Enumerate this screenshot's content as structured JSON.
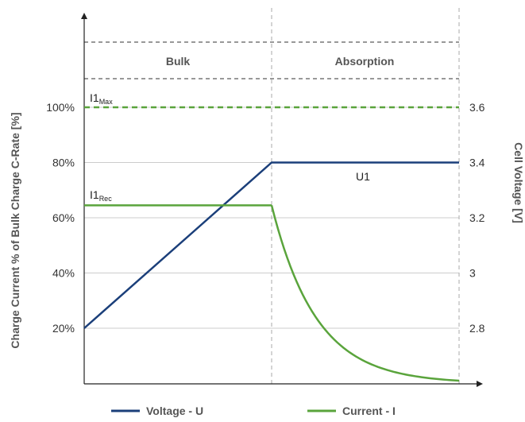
{
  "chart_data": {
    "type": "line",
    "title": "",
    "ylabel_left": "Charge Current % of Bulk Charge C-Rate [%]",
    "ylabel_right": "Cell Voltage [V]",
    "xlabel": "",
    "left_axis": {
      "ticks": [
        "20%",
        "40%",
        "60%",
        "80%",
        "100%"
      ],
      "values": [
        20,
        40,
        60,
        80,
        100
      ]
    },
    "right_axis": {
      "ticks": [
        "2.8",
        "3",
        "3.2",
        "3.4",
        "3.6"
      ],
      "values": [
        2.8,
        3.0,
        3.2,
        3.4,
        3.6
      ]
    },
    "phases": [
      "Bulk",
      "Absorption"
    ],
    "annotations": {
      "i1max": {
        "main": "I1",
        "sub": "Max"
      },
      "i1rec": {
        "main": "I1",
        "sub": "Rec"
      },
      "u1": "U1"
    },
    "series": [
      {
        "name": "Voltage - U",
        "axis": "right",
        "color": "#1b3f7a",
        "x": [
          0,
          0.5,
          1.0
        ],
        "y": [
          2.8,
          3.4,
          3.4
        ]
      },
      {
        "name": "Current - I",
        "axis": "left",
        "color": "#5aa43c",
        "shape": "constant then exponential decay",
        "x": [
          0,
          0.5,
          1.0
        ],
        "y": [
          64.5,
          64.5,
          1
        ]
      },
      {
        "name": "",
        "axis": "left",
        "color": "#5aa43c",
        "style": "dashed",
        "x": [
          0,
          1.0
        ],
        "y": [
          100,
          100
        ]
      }
    ],
    "ylim_left": [
      0,
      118
    ],
    "legend_position": "bottom"
  }
}
